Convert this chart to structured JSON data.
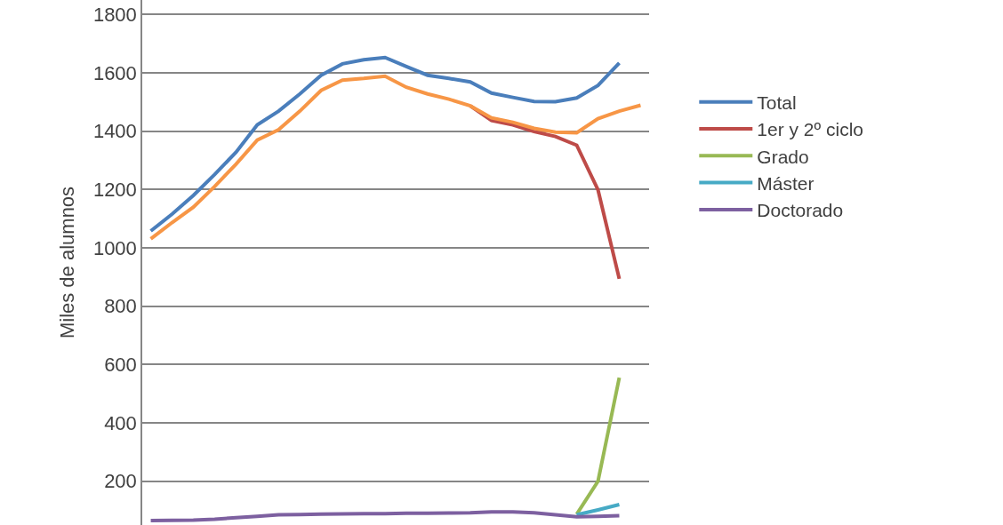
{
  "chart_data": {
    "type": "line",
    "ylabel": "Miles de alumnos",
    "categories": [
      null,
      null,
      null,
      null,
      null,
      null,
      null,
      null,
      null,
      null,
      null,
      null,
      null,
      null,
      null,
      null,
      null,
      null,
      null,
      null,
      null,
      null,
      null,
      null
    ],
    "ylim": [
      50,
      1850
    ],
    "yticks": [
      200,
      400,
      600,
      800,
      1000,
      1200,
      1400,
      1600,
      1800
    ],
    "grid": "y",
    "legend": "right",
    "tick_labels": "y",
    "series": [
      {
        "name": "Total",
        "color": "#4a7ebb",
        "values": [
          1058,
          1116,
          1180,
          1252,
          1328,
          1422,
          1469,
          1528,
          1592,
          1631,
          1645,
          1653,
          1622,
          1592,
          1581,
          1569,
          1531,
          1516,
          1502,
          1501,
          1514,
          1557,
          1634,
          null
        ]
      },
      {
        "name": "1er y 2º ciclo",
        "color": "#be4b48",
        "values": [
          null,
          null,
          null,
          null,
          null,
          null,
          null,
          null,
          null,
          null,
          null,
          null,
          null,
          null,
          null,
          1487,
          1437,
          1422,
          1399,
          1382,
          1352,
          1199,
          894,
          null
        ]
      },
      {
        "name": "Grado",
        "color": "#98b954",
        "values": [
          null,
          null,
          null,
          null,
          null,
          null,
          null,
          null,
          null,
          null,
          null,
          null,
          null,
          null,
          null,
          null,
          null,
          null,
          null,
          null,
          87,
          200,
          555,
          null
        ]
      },
      {
        "name": "Máster",
        "color": "#46aac5",
        "values": [
          null,
          null,
          null,
          null,
          null,
          null,
          null,
          null,
          null,
          null,
          null,
          null,
          null,
          null,
          null,
          null,
          null,
          null,
          null,
          null,
          85,
          102,
          120,
          null
        ]
      },
      {
        "name": "Doctorado",
        "color": "#7d60a0",
        "values": [
          65,
          66,
          67,
          70,
          75,
          80,
          85,
          86,
          87,
          88,
          89,
          89,
          90,
          90,
          91,
          92,
          95,
          95,
          92,
          85,
          78,
          80,
          82,
          null
        ]
      },
      {
        "color": "#f79646",
        "values": [
          1031,
          1087,
          1140,
          1211,
          1287,
          1370,
          1405,
          1469,
          1540,
          1575,
          1581,
          1589,
          1551,
          1528,
          1510,
          1487,
          1446,
          1431,
          1410,
          1397,
          1395,
          1443,
          1469,
          1489
        ]
      }
    ]
  }
}
